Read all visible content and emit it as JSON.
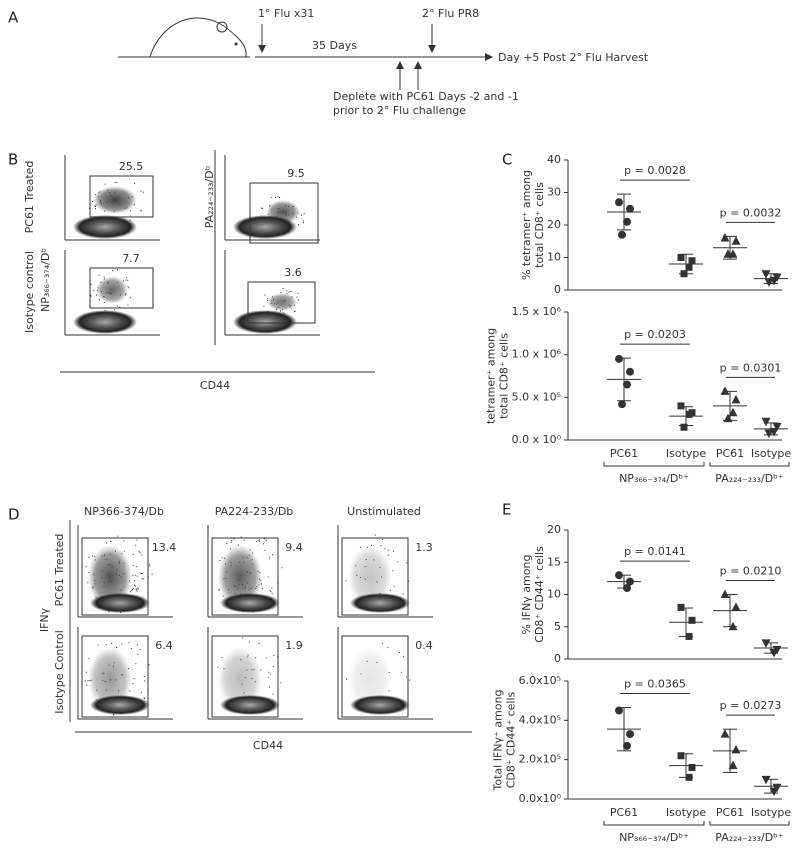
{
  "panel_letters": [
    "A",
    "B",
    "C",
    "D",
    "E"
  ],
  "timeline": {
    "prime": "1° Flu x31",
    "interval": "35 Days",
    "challenge": "2° Flu PR8",
    "harvest": "Day +5 Post 2° Flu Harvest",
    "deplete": [
      "Deplete with PC61 Days -2 and -1",
      "prior to 2° Flu challenge"
    ]
  },
  "tetramer_flow": {
    "rows": [
      "PC61 Treated",
      "Isotype control"
    ],
    "ylabels": [
      "NP₃₆₆₋₃₇₄/Dᵇ",
      "PA₂₂₄₋₂₃₃/Dᵇ"
    ],
    "xlabel": "CD44",
    "gates": [
      [
        25.5,
        9.5
      ],
      [
        7.7,
        3.6
      ]
    ]
  },
  "ifng_flow": {
    "columns": [
      "NP366-374/Db",
      "PA224-233/Db",
      "Unstimulated"
    ],
    "rows": [
      "PC61 Treated",
      "Isotype Control"
    ],
    "ylabel": "IFNγ",
    "xlabel": "CD44",
    "gates": [
      [
        13.4,
        9.4,
        1.3
      ],
      [
        6.4,
        1.9,
        0.4
      ]
    ]
  },
  "chart_data": [
    {
      "type": "dotplot",
      "ylabel": [
        "% tetramer⁺ among",
        "total CD8⁺ cells"
      ],
      "categories": [
        null,
        null,
        null,
        null
      ],
      "values": [
        [
          27,
          25,
          21,
          17
        ],
        [
          10,
          9,
          7,
          5
        ],
        [
          16,
          15,
          11,
          11
        ],
        [
          5,
          4,
          3,
          2.5
        ]
      ],
      "means": [
        24,
        8,
        13,
        3.5
      ],
      "sd": [
        5.5,
        3,
        3.5,
        1.5
      ],
      "markers": [
        "circle",
        "square",
        "triangle",
        "triangle-down"
      ],
      "color": "#333333",
      "ylim": [
        0,
        40
      ],
      "yticks": [
        0,
        10,
        20,
        30,
        40
      ],
      "annotations": [
        "p = 0.0028",
        "p = 0.0032"
      ]
    },
    {
      "type": "dotplot",
      "ylabel": [
        "tetramer⁺ among",
        "total CD8⁺ cells"
      ],
      "categories": [
        "PC61",
        "Isotype",
        "PC61",
        "Isotype"
      ],
      "values": [
        [
          950000,
          800000,
          650000,
          420000
        ],
        [
          400000,
          320000,
          300000,
          150000
        ],
        [
          570000,
          470000,
          320000,
          250000
        ],
        [
          220000,
          160000,
          100000,
          80000
        ]
      ],
      "means": [
        710000,
        280000,
        400000,
        130000
      ],
      "sd": [
        250000,
        110000,
        170000,
        70000
      ],
      "markers": [
        "circle",
        "square",
        "triangle",
        "triangle-down"
      ],
      "color": "#333333",
      "ylim": [
        0,
        1500000
      ],
      "yticks": [
        {
          "value": 0,
          "label": "0.0 x 10⁰"
        },
        {
          "value": 500000,
          "label": "5.0 x 10⁵"
        },
        {
          "value": 1000000,
          "label": "1.0 x 10⁶"
        },
        {
          "value": 1500000,
          "label": "1.5 x 10⁶"
        }
      ],
      "annotations": [
        "p = 0.0203",
        "p = 0.0301"
      ],
      "groups": [
        "NP₃₆₆₋₃₇₄/Dᵇ⁺",
        "PA₂₂₄₋₂₃₃/Dᵇ⁺"
      ]
    },
    {
      "type": "dotplot",
      "ylabel": [
        "% IFNγ among",
        "CD8⁺ CD44⁺ cells"
      ],
      "categories": [
        null,
        null,
        null,
        null
      ],
      "values": [
        [
          13,
          12,
          11
        ],
        [
          8,
          6,
          3.5
        ],
        [
          10,
          8,
          5
        ],
        [
          2.5,
          1.5,
          1
        ]
      ],
      "means": [
        12,
        5.7,
        7.5,
        1.7
      ],
      "sd": [
        1,
        2.2,
        2.5,
        0.8
      ],
      "markers": [
        "circle",
        "square",
        "triangle",
        "triangle-down"
      ],
      "color": "#333333",
      "ylim": [
        0,
        20
      ],
      "yticks": [
        0,
        5,
        10,
        15,
        20
      ],
      "annotations": [
        "p = 0.0141",
        "p = 0.0210"
      ]
    },
    {
      "type": "dotplot",
      "ylabel": [
        "Total IFNγ⁺ among",
        "CD8⁺ CD44⁺ cells"
      ],
      "categories": [
        "PC61",
        "Isotype",
        "PC61",
        "Isotype"
      ],
      "values": [
        [
          450000,
          330000,
          270000
        ],
        [
          220000,
          160000,
          110000
        ],
        [
          330000,
          250000,
          170000
        ],
        [
          100000,
          60000,
          40000
        ]
      ],
      "means": [
        355000,
        170000,
        245000,
        65000
      ],
      "sd": [
        110000,
        60000,
        110000,
        35000
      ],
      "markers": [
        "circle",
        "square",
        "triangle",
        "triangle-down"
      ],
      "color": "#333333",
      "ylim": [
        0,
        600000
      ],
      "yticks": [
        {
          "value": 0,
          "label": "0.0x10⁰"
        },
        {
          "value": 200000,
          "label": "2.0x10⁵"
        },
        {
          "value": 400000,
          "label": "4.0x10⁵"
        },
        {
          "value": 600000,
          "label": "6.0x10⁵"
        }
      ],
      "annotations": [
        "p = 0.0365",
        "p = 0.0273"
      ],
      "groups": [
        "NP₃₆₆₋₃₇₄/Dᵇ⁺",
        "PA₂₂₄₋₂₃₃/Dᵇ⁺"
      ]
    }
  ]
}
